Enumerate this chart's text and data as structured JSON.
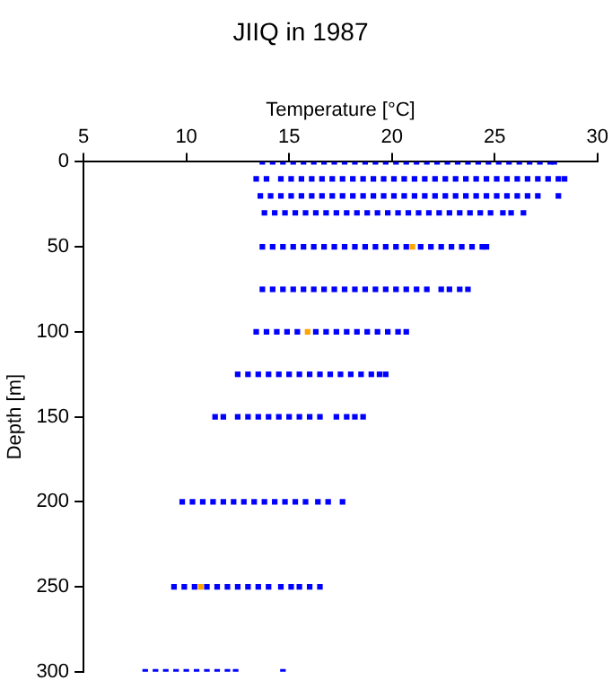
{
  "chart_data": {
    "type": "scatter",
    "title": "JIIQ in 1987",
    "xlabel": "Temperature [°C]",
    "ylabel": "Depth [m]",
    "xlim": [
      5,
      30
    ],
    "xticks": [
      5,
      10,
      15,
      20,
      25,
      30
    ],
    "ylim": [
      300,
      0
    ],
    "yticks": [
      0,
      50,
      100,
      150,
      200,
      250,
      300
    ],
    "grid": false,
    "legend": false,
    "marker": "square",
    "series": [
      {
        "color": "#0000ff",
        "x": [
          13.7,
          14.2,
          14.7,
          15.2,
          15.7,
          16.2,
          16.7,
          17.2,
          17.7,
          18.2,
          18.7,
          19.2,
          19.7,
          20.2,
          20.7,
          21.2,
          21.7,
          22.2,
          22.7,
          23.2,
          23.7,
          24.2,
          24.7,
          25.2,
          25.7,
          26.2,
          26.7,
          27.2,
          27.7,
          27.9
        ],
        "values": [
          0,
          0,
          0,
          0,
          0,
          0,
          0,
          0,
          0,
          0,
          0,
          0,
          0,
          0,
          0,
          0,
          0,
          0,
          0,
          0,
          0,
          0,
          0,
          0,
          0,
          0,
          0,
          0,
          0,
          0
        ]
      },
      {
        "color": "#0000ff",
        "x": [
          13.4,
          13.9,
          14.6,
          15.1,
          15.6,
          16.1,
          16.6,
          17.1,
          17.6,
          18.1,
          18.6,
          19.1,
          19.6,
          20.1,
          20.6,
          21.1,
          21.6,
          22.1,
          22.6,
          23.1,
          23.6,
          24.1,
          24.6,
          25.1,
          25.6,
          26.1,
          26.6,
          27.1,
          27.6,
          28.1,
          28.4
        ],
        "values": [
          10,
          10,
          10,
          10,
          10,
          10,
          10,
          10,
          10,
          10,
          10,
          10,
          10,
          10,
          10,
          10,
          10,
          10,
          10,
          10,
          10,
          10,
          10,
          10,
          10,
          10,
          10,
          10,
          10,
          10,
          10
        ]
      },
      {
        "color": "#0000ff",
        "x": [
          13.6,
          14.1,
          14.6,
          15.1,
          15.6,
          16.1,
          16.6,
          17.1,
          17.6,
          18.1,
          18.6,
          19.1,
          19.6,
          20.1,
          20.6,
          21.1,
          21.6,
          22.1,
          22.6,
          23.1,
          23.6,
          24.1,
          24.6,
          25.1,
          25.6,
          26.1,
          26.6,
          27.1,
          28.1
        ],
        "values": [
          20,
          20,
          20,
          20,
          20,
          20,
          20,
          20,
          20,
          20,
          20,
          20,
          20,
          20,
          20,
          20,
          20,
          20,
          20,
          20,
          20,
          20,
          20,
          20,
          20,
          20,
          20,
          20,
          20
        ]
      },
      {
        "color": "#0000ff",
        "x": [
          13.8,
          14.3,
          14.8,
          15.3,
          15.8,
          16.3,
          16.8,
          17.3,
          17.8,
          18.3,
          18.8,
          19.3,
          19.8,
          20.3,
          20.8,
          21.3,
          21.8,
          22.3,
          22.8,
          23.3,
          23.8,
          24.3,
          24.8,
          25.4,
          25.8,
          26.4
        ],
        "values": [
          30,
          30,
          30,
          30,
          30,
          30,
          30,
          30,
          30,
          30,
          30,
          30,
          30,
          30,
          30,
          30,
          30,
          30,
          30,
          30,
          30,
          30,
          30,
          30,
          30,
          30
        ]
      },
      {
        "color": "#0000ff",
        "x": [
          13.7,
          14.2,
          14.7,
          15.2,
          15.7,
          16.2,
          16.7,
          17.2,
          17.7,
          18.2,
          18.7,
          19.2,
          19.7,
          20.2,
          20.7,
          21.4,
          21.9,
          22.4,
          22.9,
          23.4,
          23.9,
          24.4,
          24.6
        ],
        "values": [
          50,
          50,
          50,
          50,
          50,
          50,
          50,
          50,
          50,
          50,
          50,
          50,
          50,
          50,
          50,
          50,
          50,
          50,
          50,
          50,
          50,
          50,
          50
        ]
      },
      {
        "color": "#0000ff",
        "x": [
          13.7,
          14.2,
          14.7,
          15.2,
          15.7,
          16.2,
          16.7,
          17.2,
          17.7,
          18.2,
          18.7,
          19.2,
          19.7,
          20.2,
          20.7,
          21.2,
          21.7,
          22.4,
          22.8,
          23.3,
          23.7
        ],
        "values": [
          75,
          75,
          75,
          75,
          75,
          75,
          75,
          75,
          75,
          75,
          75,
          75,
          75,
          75,
          75,
          75,
          75,
          75,
          75,
          75,
          75
        ]
      },
      {
        "color": "#0000ff",
        "x": [
          13.4,
          13.9,
          14.4,
          14.9,
          15.4,
          16.3,
          16.8,
          17.3,
          17.8,
          18.3,
          18.8,
          19.3,
          19.8,
          20.3,
          20.7
        ],
        "values": [
          100,
          100,
          100,
          100,
          100,
          100,
          100,
          100,
          100,
          100,
          100,
          100,
          100,
          100,
          100
        ]
      },
      {
        "color": "#0000ff",
        "x": [
          12.5,
          13.0,
          13.5,
          14.0,
          14.5,
          15.0,
          15.5,
          16.0,
          16.5,
          17.0,
          17.5,
          18.0,
          18.5,
          19.0,
          19.4,
          19.7
        ],
        "values": [
          125,
          125,
          125,
          125,
          125,
          125,
          125,
          125,
          125,
          125,
          125,
          125,
          125,
          125,
          125,
          125
        ]
      },
      {
        "color": "#0000ff",
        "x": [
          11.4,
          11.8,
          12.5,
          13.0,
          13.5,
          14.0,
          14.5,
          15.0,
          15.5,
          16.0,
          16.5,
          17.3,
          17.8,
          18.2,
          18.6
        ],
        "values": [
          150,
          150,
          150,
          150,
          150,
          150,
          150,
          150,
          150,
          150,
          150,
          150,
          150,
          150,
          150
        ]
      },
      {
        "color": "#0000ff",
        "x": [
          9.8,
          10.3,
          10.8,
          11.3,
          11.8,
          12.3,
          12.8,
          13.3,
          13.8,
          14.3,
          14.8,
          15.3,
          15.8,
          16.4,
          16.9,
          17.6
        ],
        "values": [
          200,
          200,
          200,
          200,
          200,
          200,
          200,
          200,
          200,
          200,
          200,
          200,
          200,
          200,
          200,
          200
        ]
      },
      {
        "color": "#0000ff",
        "x": [
          9.4,
          9.9,
          10.4,
          11.0,
          11.5,
          12.0,
          12.5,
          13.0,
          13.5,
          14.0,
          14.6,
          15.1,
          15.5,
          16.0,
          16.5
        ],
        "values": [
          250,
          250,
          250,
          250,
          250,
          250,
          250,
          250,
          250,
          250,
          250,
          250,
          250,
          250,
          250
        ]
      },
      {
        "color": "#0000ff",
        "x": [
          8.0,
          8.5,
          9.0,
          9.5,
          10.0,
          10.5,
          11.0,
          11.5,
          12.0,
          12.4,
          14.7
        ],
        "values": [
          300,
          300,
          300,
          300,
          300,
          300,
          300,
          300,
          300,
          300,
          300
        ]
      },
      {
        "color": "#ffa500",
        "x": [
          21.0,
          15.9,
          10.7
        ],
        "values": [
          50,
          100,
          250
        ]
      }
    ]
  }
}
